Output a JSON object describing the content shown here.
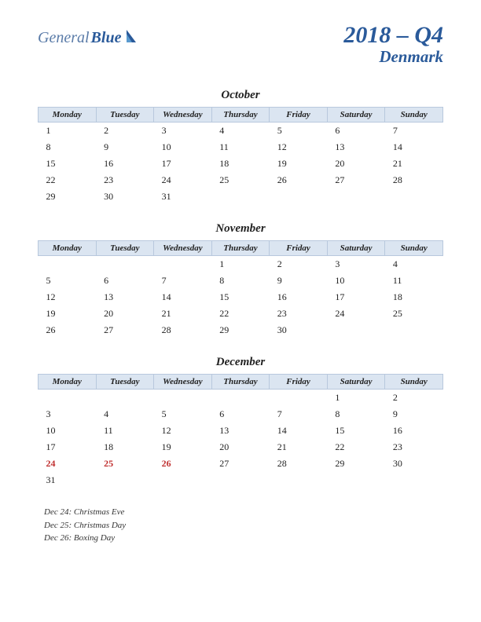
{
  "logo": {
    "part1": "General",
    "part2": "Blue"
  },
  "header": {
    "period": "2018 – Q4",
    "country": "Denmark"
  },
  "colors": {
    "header_bg": "#dbe5f1",
    "header_border": "#b8c8dd",
    "brand_dark": "#2a5a9a",
    "brand_light": "#5a7ba8",
    "holiday": "#c03030",
    "text": "#222222"
  },
  "weekdays": [
    "Monday",
    "Tuesday",
    "Wednesday",
    "Thursday",
    "Friday",
    "Saturday",
    "Sunday"
  ],
  "months": [
    {
      "name": "October",
      "weeks": [
        [
          "1",
          "2",
          "3",
          "4",
          "5",
          "6",
          "7"
        ],
        [
          "8",
          "9",
          "10",
          "11",
          "12",
          "13",
          "14"
        ],
        [
          "15",
          "16",
          "17",
          "18",
          "19",
          "20",
          "21"
        ],
        [
          "22",
          "23",
          "24",
          "25",
          "26",
          "27",
          "28"
        ],
        [
          "29",
          "30",
          "31",
          "",
          "",
          "",
          ""
        ]
      ],
      "holiday_cells": []
    },
    {
      "name": "November",
      "weeks": [
        [
          "",
          "",
          "",
          "1",
          "2",
          "3",
          "4"
        ],
        [
          "5",
          "6",
          "7",
          "8",
          "9",
          "10",
          "11"
        ],
        [
          "12",
          "13",
          "14",
          "15",
          "16",
          "17",
          "18"
        ],
        [
          "19",
          "20",
          "21",
          "22",
          "23",
          "24",
          "25"
        ],
        [
          "26",
          "27",
          "28",
          "29",
          "30",
          "",
          ""
        ]
      ],
      "holiday_cells": []
    },
    {
      "name": "December",
      "weeks": [
        [
          "",
          "",
          "",
          "",
          "",
          "1",
          "2"
        ],
        [
          "3",
          "4",
          "5",
          "6",
          "7",
          "8",
          "9"
        ],
        [
          "10",
          "11",
          "12",
          "13",
          "14",
          "15",
          "16"
        ],
        [
          "17",
          "18",
          "19",
          "20",
          "21",
          "22",
          "23"
        ],
        [
          "24",
          "25",
          "26",
          "27",
          "28",
          "29",
          "30"
        ],
        [
          "31",
          "",
          "",
          "",
          "",
          "",
          ""
        ]
      ],
      "holiday_cells": [
        "24",
        "25",
        "26"
      ]
    }
  ],
  "holidays_list": [
    "Dec 24: Christmas Eve",
    "Dec 25: Christmas Day",
    "Dec 26: Boxing Day"
  ]
}
